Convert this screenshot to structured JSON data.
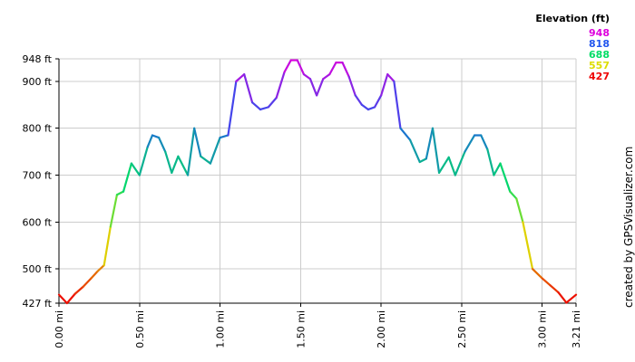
{
  "chart_data": {
    "type": "line",
    "title": "",
    "xlabel": "",
    "ylabel": "",
    "xlim": [
      0,
      3.21
    ],
    "ylim": [
      427,
      948
    ],
    "x_ticks": [
      {
        "value": 0.0,
        "label": "0.00 mi"
      },
      {
        "value": 0.5,
        "label": "0.50 mi"
      },
      {
        "value": 1.0,
        "label": "1.00 mi"
      },
      {
        "value": 1.5,
        "label": "1.50 mi"
      },
      {
        "value": 2.0,
        "label": "2.00 mi"
      },
      {
        "value": 2.5,
        "label": "2.50 mi"
      },
      {
        "value": 3.0,
        "label": "3.00 mi"
      },
      {
        "value": 3.21,
        "label": "3.21 mi"
      }
    ],
    "y_ticks": [
      {
        "value": 427,
        "label": "427 ft"
      },
      {
        "value": 500,
        "label": "500 ft"
      },
      {
        "value": 600,
        "label": "600 ft"
      },
      {
        "value": 700,
        "label": "700 ft"
      },
      {
        "value": 800,
        "label": "800 ft"
      },
      {
        "value": 900,
        "label": "900 ft"
      },
      {
        "value": 948,
        "label": "948 ft"
      }
    ],
    "grid": true,
    "legend": {
      "placement": "top-right",
      "title": "Elevation (ft)",
      "entries": [
        {
          "label": "948",
          "color": "#dd00dd"
        },
        {
          "label": "818",
          "color": "#2255ee"
        },
        {
          "label": "688",
          "color": "#00dd66"
        },
        {
          "label": "557",
          "color": "#dddd00"
        },
        {
          "label": "427",
          "color": "#ee0000"
        }
      ]
    },
    "color_scale": {
      "stops": [
        {
          "value": 427,
          "color": "#ee0000"
        },
        {
          "value": 557,
          "color": "#dddd00"
        },
        {
          "value": 688,
          "color": "#00dd66"
        },
        {
          "value": 818,
          "color": "#2255ee"
        },
        {
          "value": 948,
          "color": "#dd00dd"
        }
      ]
    },
    "series": [
      {
        "x": [
          0.0,
          0.05,
          0.1,
          0.15,
          0.2,
          0.24,
          0.28,
          0.32,
          0.36,
          0.4,
          0.45,
          0.5,
          0.55,
          0.58,
          0.62,
          0.66,
          0.7,
          0.74,
          0.8,
          0.84,
          0.88,
          0.94,
          1.0,
          1.05,
          1.1,
          1.15,
          1.2,
          1.25,
          1.3,
          1.35,
          1.4,
          1.44,
          1.48,
          1.52,
          1.56,
          1.6,
          1.64,
          1.68,
          1.72,
          1.76,
          1.8,
          1.84,
          1.88,
          1.92,
          1.96,
          2.0,
          2.04,
          2.08,
          2.12,
          2.18,
          2.24,
          2.28,
          2.32,
          2.36,
          2.42,
          2.46,
          2.52,
          2.58,
          2.62,
          2.66,
          2.7,
          2.74,
          2.8,
          2.84,
          2.88,
          2.94,
          3.0,
          3.05,
          3.1,
          3.15,
          3.21
        ],
        "y": [
          445,
          427,
          447,
          462,
          480,
          495,
          508,
          590,
          658,
          665,
          725,
          700,
          760,
          785,
          780,
          750,
          705,
          740,
          700,
          800,
          740,
          725,
          780,
          785,
          900,
          915,
          855,
          840,
          845,
          865,
          920,
          945,
          945,
          915,
          905,
          870,
          905,
          915,
          940,
          940,
          910,
          870,
          850,
          840,
          845,
          870,
          915,
          900,
          800,
          775,
          728,
          735,
          800,
          705,
          738,
          700,
          750,
          785,
          785,
          755,
          700,
          725,
          665,
          650,
          600,
          500,
          480,
          465,
          450,
          428,
          445
        ]
      }
    ],
    "credit": "created by GPSVisualizer.com"
  }
}
